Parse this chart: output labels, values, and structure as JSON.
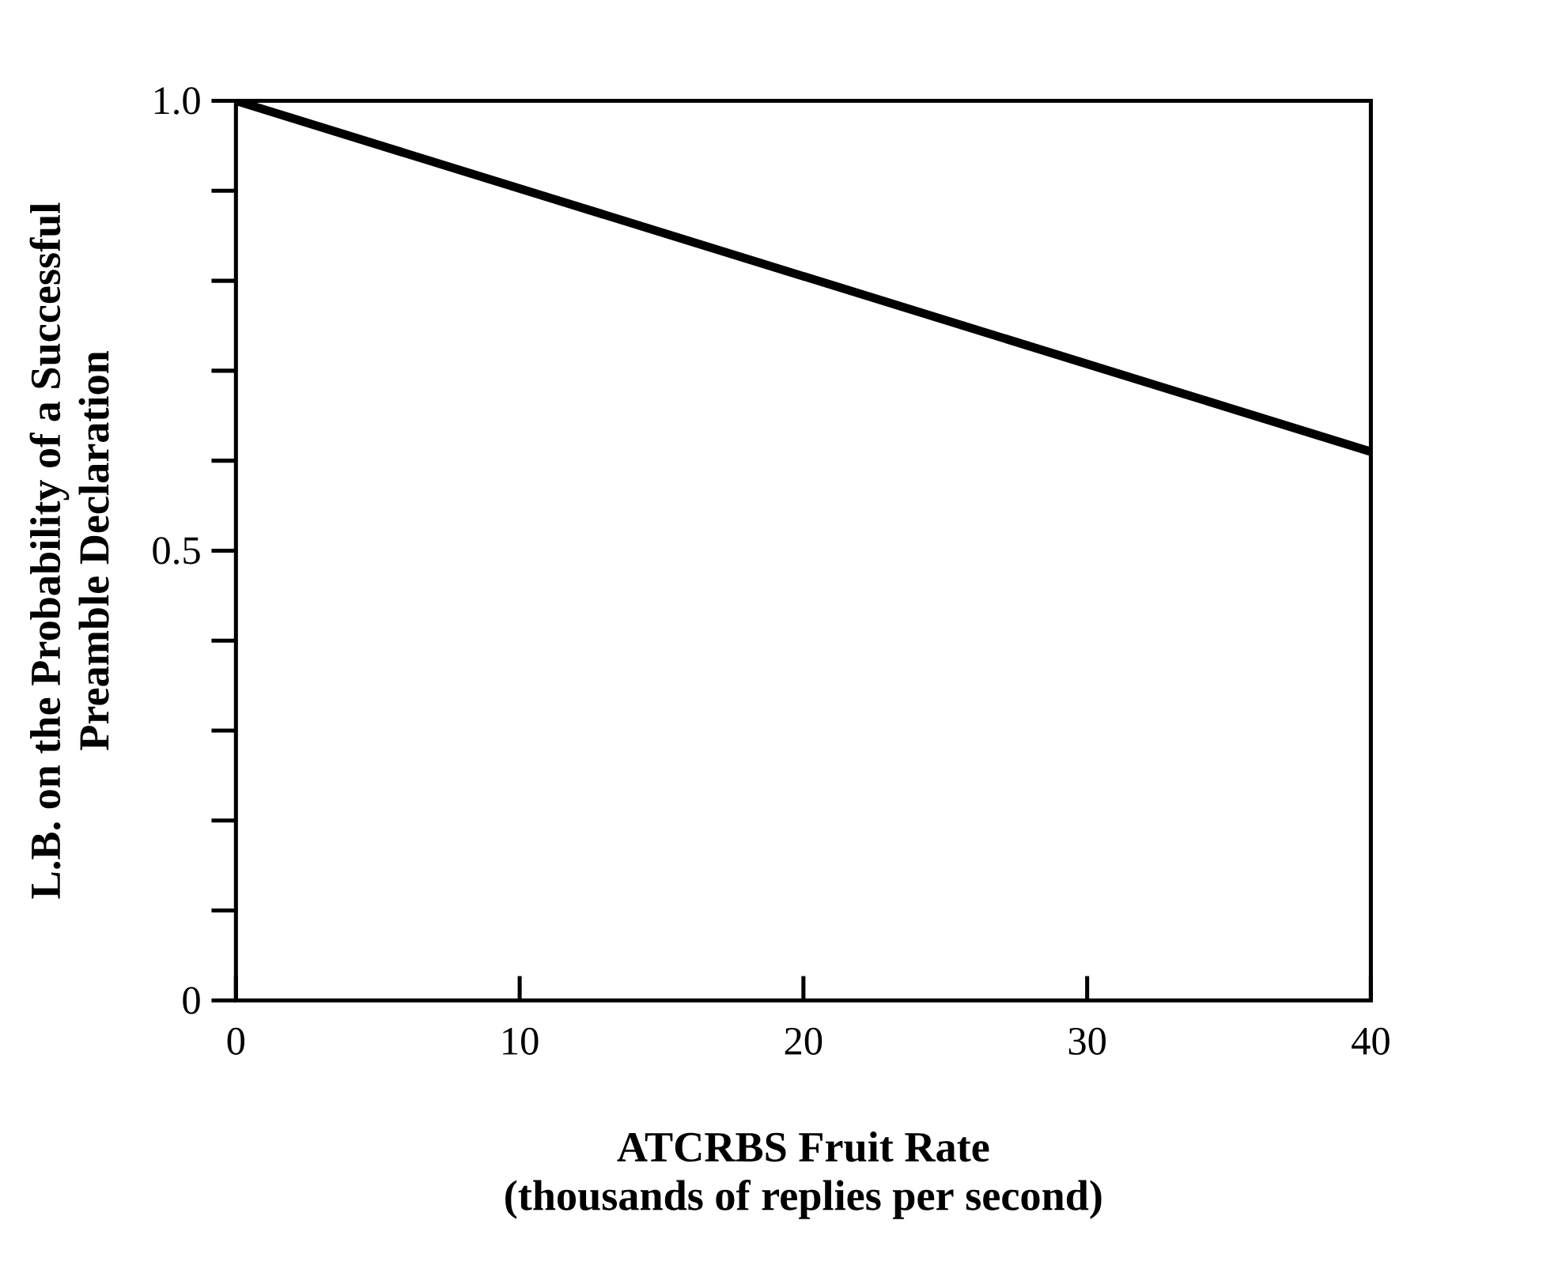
{
  "chart_data": {
    "type": "line",
    "xlabel": "ATCRBS Fruit Rate\n(thousands of replies per second)",
    "ylabel": "L.B. on the Probability of a Successful\nPreamble Declaration",
    "x": [
      0,
      40
    ],
    "series": [
      {
        "color": "#000000",
        "values": [
          1.0,
          0.61
        ]
      }
    ],
    "xlim": [
      0,
      40
    ],
    "ylim": [
      0,
      1.0
    ],
    "xticks": [
      0,
      10,
      20,
      30,
      40
    ],
    "yticks": [
      0,
      {
        "value": 0.1,
        "label": null
      },
      {
        "value": 0.2,
        "label": null
      },
      {
        "value": 0.3,
        "label": null
      },
      {
        "value": 0.4,
        "label": null
      },
      {
        "value": 0.5,
        "label": "0.5"
      },
      {
        "value": 0.6,
        "label": null
      },
      {
        "value": 0.7,
        "label": null
      },
      {
        "value": 0.8,
        "label": null
      },
      {
        "value": 0.9,
        "label": null
      },
      {
        "value": 1.0,
        "label": "1.0"
      }
    ],
    "grid": false,
    "marker": "none",
    "line_style": "solid"
  }
}
